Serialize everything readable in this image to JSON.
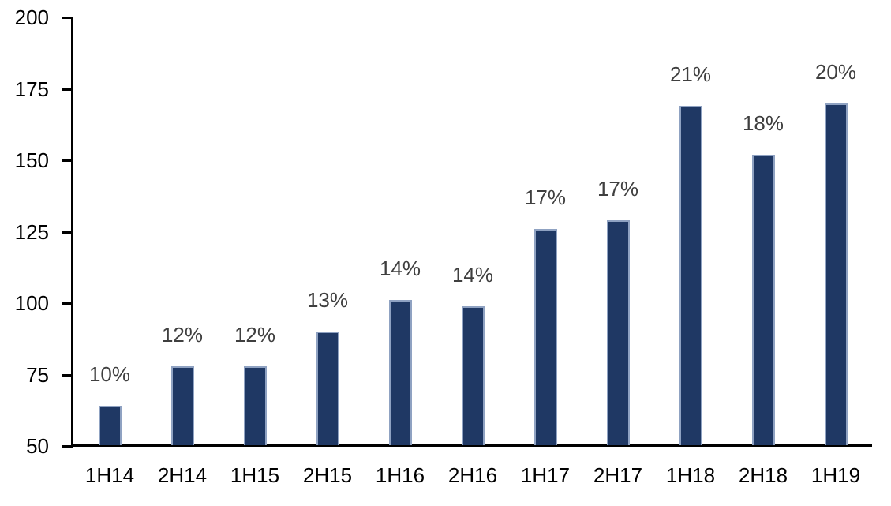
{
  "chart_data": {
    "type": "bar",
    "title": "",
    "xlabel": "",
    "ylabel": "",
    "categories": [
      "1H14",
      "2H14",
      "1H15",
      "2H15",
      "1H16",
      "2H16",
      "1H17",
      "2H17",
      "1H18",
      "2H18",
      "1H19"
    ],
    "values": [
      64,
      78,
      78,
      90,
      101,
      99,
      126,
      129,
      169,
      152,
      170
    ],
    "data_labels": [
      "10%",
      "12%",
      "12%",
      "13%",
      "14%",
      "14%",
      "17%",
      "17%",
      "21%",
      "18%",
      "20%"
    ],
    "ylim": [
      50,
      200
    ],
    "ytick_step": 25,
    "ytick_labels": [
      "50",
      "75",
      "100",
      "125",
      "150",
      "175",
      "200"
    ],
    "grid": false,
    "legend": "none",
    "colors": {
      "bar_fill": "#1F3864",
      "bar_border": "#8FA2C2",
      "data_label": "#3F3F3F",
      "axis_text": "#000000",
      "axis_line": "#000000"
    }
  }
}
